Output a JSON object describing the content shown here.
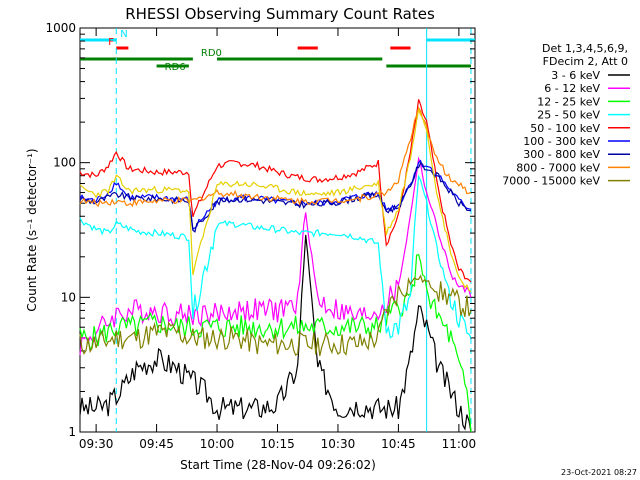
{
  "chart_data": {
    "type": "line",
    "title": "RHESSI Observing Summary Count Rates",
    "xlabel": "Start Time (28-Nov-04 09:26:02)",
    "ylabel": "Count Rate (s⁻¹ detector⁻¹)",
    "x_range_minutes": [
      "09:26",
      "11:04"
    ],
    "ylim": [
      1,
      1000
    ],
    "y_scale": "log",
    "xticks": [
      "09:30",
      "09:45",
      "10:00",
      "10:15",
      "10:30",
      "10:45",
      "11:00"
    ],
    "yticks": [
      "1",
      "10",
      "100",
      "1000"
    ],
    "legend_header": [
      "Det 1,3,4,5,6,9,",
      "FDecim 2, Att 0"
    ],
    "legend_position": "right",
    "flags": [
      {
        "label": "N",
        "color": "#00e5ff",
        "segments": [
          [
            "09:26",
            "09:35"
          ],
          [
            "10:52",
            "11:04"
          ]
        ]
      },
      {
        "label": "F",
        "color": "#ff0000",
        "segments": [
          [
            "09:35",
            "09:38"
          ],
          [
            "10:20",
            "10:25"
          ],
          [
            "10:43",
            "10:48"
          ]
        ]
      },
      {
        "label": "RD0",
        "color": "#008000",
        "segments": [
          [
            "09:26",
            "09:54"
          ],
          [
            "10:00",
            "10:41"
          ]
        ]
      },
      {
        "label": "RD6",
        "color": "#008000",
        "segments": [
          [
            "09:45",
            "09:53"
          ],
          [
            "10:42",
            "11:03"
          ]
        ]
      }
    ],
    "series": [
      {
        "name": "3 - 6 keV",
        "color": "#000000",
        "x": [
          "09:26",
          "09:30",
          "09:33",
          "09:36",
          "09:40",
          "09:45",
          "09:50",
          "09:53",
          "09:57",
          "10:00",
          "10:05",
          "10:10",
          "10:15",
          "10:20",
          "10:22",
          "10:25",
          "10:30",
          "10:35",
          "10:40",
          "10:42",
          "10:45",
          "10:48",
          "10:50",
          "10:52",
          "10:55",
          "10:58",
          "11:00",
          "11:02",
          "11:03"
        ],
        "values": [
          1.5,
          1.5,
          1.6,
          2.0,
          3.0,
          3.5,
          3.0,
          2.5,
          2.0,
          1.5,
          1.5,
          1.5,
          1.6,
          3.0,
          30.0,
          3.0,
          1.5,
          1.6,
          1.5,
          1.5,
          1.5,
          3.5,
          8.0,
          6.0,
          3.0,
          2.0,
          1.5,
          1.2,
          1.0
        ]
      },
      {
        "name": "6 - 12 keV",
        "color": "#ff00ff",
        "x": [
          "09:26",
          "09:30",
          "09:35",
          "09:40",
          "09:45",
          "09:50",
          "09:53",
          "09:57",
          "10:00",
          "10:05",
          "10:10",
          "10:15",
          "10:20",
          "10:22",
          "10:25",
          "10:30",
          "10:35",
          "10:40",
          "10:42",
          "10:45",
          "10:48",
          "10:50",
          "10:52",
          "10:55",
          "10:58",
          "11:00",
          "11:02",
          "11:03"
        ],
        "values": [
          4.5,
          5.5,
          7.5,
          8.0,
          8.0,
          7.5,
          7.5,
          7.5,
          7.5,
          8.0,
          8.0,
          8.0,
          9.0,
          43.0,
          9.5,
          8.0,
          7.0,
          8.0,
          9.0,
          12.0,
          40.0,
          110.0,
          60.0,
          30.0,
          15.0,
          12.0,
          11.0,
          10.0
        ]
      },
      {
        "name": "12 - 25 keV",
        "color": "#00ff00",
        "x": [
          "09:26",
          "09:30",
          "09:35",
          "09:40",
          "09:45",
          "09:50",
          "09:53",
          "09:57",
          "10:00",
          "10:05",
          "10:10",
          "10:15",
          "10:20",
          "10:22",
          "10:25",
          "10:30",
          "10:35",
          "10:40",
          "10:42",
          "10:45",
          "10:48",
          "10:50",
          "10:52",
          "10:53",
          "10:55",
          "10:58",
          "11:00",
          "11:02",
          "11:03"
        ],
        "values": [
          5.0,
          5.0,
          6.0,
          6.0,
          6.5,
          6.0,
          6.0,
          6.0,
          6.0,
          6.0,
          6.0,
          6.0,
          6.0,
          6.0,
          6.0,
          6.0,
          6.0,
          6.0,
          7.0,
          8.5,
          10.0,
          20.0,
          12.0,
          9.0,
          7.0,
          5.0,
          3.0,
          2.0,
          1.0
        ]
      },
      {
        "name": "25 - 50 keV",
        "color": "#00ffff",
        "x": [
          "09:26",
          "09:30",
          "09:33",
          "09:35",
          "09:40",
          "09:45",
          "09:53",
          "09:54",
          "10:00",
          "10:05",
          "10:10",
          "10:15",
          "10:20",
          "10:25",
          "10:30",
          "10:35",
          "10:40",
          "10:42",
          "10:45",
          "10:48",
          "10:50",
          "10:52",
          "10:55",
          "10:58",
          "11:00",
          "11:02",
          "11:03"
        ],
        "values": [
          38.0,
          32.0,
          30.0,
          35.0,
          31.0,
          30.0,
          28.0,
          7.5,
          35.0,
          35.0,
          33.0,
          32.0,
          30.0,
          30.0,
          30.0,
          28.0,
          25.0,
          6.0,
          6.0,
          10.0,
          80.0,
          50.0,
          20.0,
          10.0,
          7.0,
          5.5,
          5.0
        ]
      },
      {
        "name": "50 - 100 keV",
        "color": "#ff0000",
        "x": [
          "09:26",
          "09:30",
          "09:33",
          "09:35",
          "09:38",
          "09:45",
          "09:53",
          "09:54",
          "10:00",
          "10:05",
          "10:10",
          "10:15",
          "10:20",
          "10:25",
          "10:30",
          "10:35",
          "10:40",
          "10:42",
          "10:45",
          "10:48",
          "10:50",
          "10:52",
          "10:55",
          "10:58",
          "11:00",
          "11:02",
          "11:03"
        ],
        "values": [
          85.0,
          80.0,
          95.0,
          120.0,
          90.0,
          85.0,
          85.0,
          40.0,
          95.0,
          100.0,
          95.0,
          85.0,
          78.0,
          75.0,
          78.0,
          85.0,
          100.0,
          25.0,
          40.0,
          120.0,
          280.0,
          200.0,
          60.0,
          25.0,
          16.0,
          14.0,
          13.0
        ]
      },
      {
        "name": "100 - 300 keV",
        "color": "#0000ff",
        "x": [
          "09:26",
          "09:30",
          "09:33",
          "09:35",
          "09:38",
          "09:45",
          "09:53",
          "09:54",
          "10:00",
          "10:05",
          "10:10",
          "10:15",
          "10:20",
          "10:25",
          "10:30",
          "10:35",
          "10:40",
          "10:42",
          "10:45",
          "10:48",
          "10:50",
          "10:52",
          "10:55",
          "10:58",
          "11:00",
          "11:02",
          "11:03"
        ],
        "values": [
          55.0,
          52.0,
          60.0,
          72.0,
          55.0,
          55.0,
          53.0,
          32.0,
          52.0,
          55.0,
          54.0,
          52.0,
          50.0,
          50.0,
          52.0,
          56.0,
          60.0,
          45.0,
          48.0,
          70.0,
          100.0,
          95.0,
          80.0,
          62.0,
          52.0,
          47.0,
          45.0
        ]
      },
      {
        "name": "300 - 800 keV",
        "color": "#0000a0",
        "x": [
          "09:26",
          "09:30",
          "09:35",
          "09:40",
          "09:45",
          "09:53",
          "09:54",
          "10:00",
          "10:05",
          "10:10",
          "10:15",
          "10:20",
          "10:25",
          "10:30",
          "10:35",
          "10:40",
          "10:42",
          "10:45",
          "10:48",
          "10:50",
          "10:52",
          "10:55",
          "10:58",
          "11:00",
          "11:02",
          "11:03"
        ],
        "values": [
          54.0,
          51.0,
          58.0,
          54.0,
          54.0,
          52.0,
          31.0,
          51.0,
          54.0,
          53.0,
          51.0,
          49.0,
          49.0,
          51.0,
          55.0,
          58.0,
          44.0,
          47.0,
          68.0,
          96.0,
          92.0,
          78.0,
          60.0,
          50.0,
          46.0,
          44.0
        ]
      },
      {
        "name": "800 - 7000 keV",
        "color": "#ff8000",
        "x": [
          "09:26",
          "09:30",
          "09:35",
          "09:38",
          "09:45",
          "09:53",
          "09:54",
          "10:00",
          "10:05",
          "10:10",
          "10:15",
          "10:20",
          "10:25",
          "10:30",
          "10:35",
          "10:40",
          "10:42",
          "10:45",
          "10:48",
          "10:50",
          "10:52",
          "10:55",
          "10:58",
          "11:00",
          "11:02",
          "11:03"
        ],
        "values": [
          52.0,
          50.0,
          52.0,
          50.0,
          52.0,
          52.0,
          52.0,
          60.0,
          58.0,
          56.0,
          54.0,
          52.0,
          52.0,
          53.0,
          54.0,
          58.0,
          60.0,
          75.0,
          150.0,
          250.0,
          180.0,
          100.0,
          75.0,
          68.0,
          62.0,
          60.0
        ]
      },
      {
        "name": "7000 - 15000 keV",
        "color": "#808000",
        "x": [
          "09:26",
          "09:30",
          "09:35",
          "09:40",
          "09:45",
          "09:50",
          "09:53",
          "09:57",
          "10:00",
          "10:05",
          "10:10",
          "10:15",
          "10:20",
          "10:25",
          "10:30",
          "10:35",
          "10:40",
          "10:42",
          "10:45",
          "10:48",
          "10:50",
          "10:52",
          "10:55",
          "10:58",
          "11:00",
          "11:02",
          "11:03"
        ],
        "values": [
          4.5,
          4.5,
          5.0,
          5.0,
          5.5,
          5.5,
          5.0,
          5.0,
          5.0,
          5.0,
          4.5,
          4.5,
          4.5,
          4.5,
          4.5,
          4.5,
          5.0,
          8.0,
          11.0,
          13.0,
          14.0,
          13.0,
          11.0,
          10.0,
          9.0,
          8.5,
          8.0
        ]
      }
    ],
    "extra_series_hint": "yellow band (50-100 keV region in display) rendered as color accent",
    "extra_series": [
      {
        "name": "",
        "color": "#e6d000",
        "x": [
          "09:26",
          "09:30",
          "09:33",
          "09:35",
          "09:38",
          "09:45",
          "09:53",
          "09:54",
          "10:00",
          "10:05",
          "10:10",
          "10:15",
          "10:20",
          "10:25",
          "10:30",
          "10:35",
          "10:40",
          "10:42",
          "10:45",
          "10:48",
          "10:50",
          "10:52",
          "10:55",
          "10:58",
          "11:00",
          "11:02",
          "11:03"
        ],
        "values": [
          65.0,
          58.0,
          62.0,
          78.0,
          62.0,
          63.0,
          62.0,
          15.0,
          68.0,
          70.0,
          68.0,
          64.0,
          60.0,
          58.0,
          60.0,
          65.0,
          70.0,
          30.0,
          45.0,
          110.0,
          260.0,
          180.0,
          50.0,
          22.0,
          14.0,
          12.0,
          11.0
        ]
      }
    ]
  },
  "timestamp": "23-Oct-2021 08:27"
}
